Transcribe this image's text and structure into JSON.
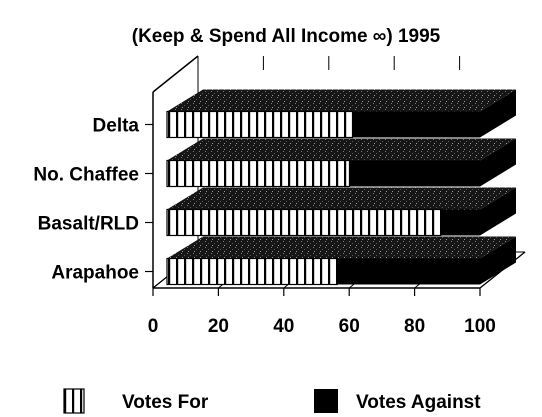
{
  "chart_data": {
    "type": "bar",
    "orientation": "horizontal",
    "style": "3d-stacked-100",
    "title": "(Keep & Spend All Income ∞) 1995",
    "categories": [
      "Delta",
      "No. Chaffee",
      "Basalt/RLD",
      "Arapahoe"
    ],
    "series": [
      {
        "name": "Votes For",
        "values": [
          61,
          60,
          90,
          56
        ],
        "pattern": "vertical-stripes",
        "color": "#ffffff"
      },
      {
        "name": "Votes Against",
        "values": [
          39,
          40,
          10,
          44
        ],
        "pattern": "solid",
        "color": "#000000"
      }
    ],
    "xlim": [
      0,
      100
    ],
    "xticks": [
      "0",
      "20",
      "40",
      "60",
      "80",
      "100"
    ],
    "grid": true,
    "legend_position": "bottom"
  }
}
